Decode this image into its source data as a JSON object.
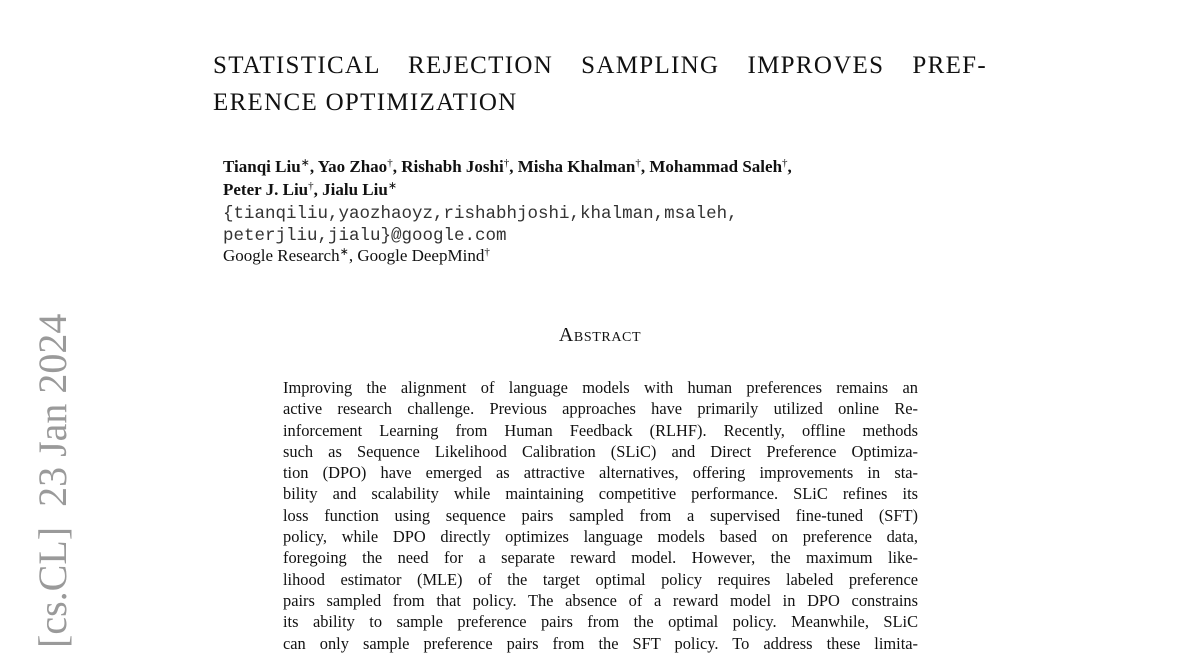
{
  "side_stamp": "[cs.CL]  23 Jan 2024",
  "title": {
    "lines": [
      "STATISTICAL REJECTION SAMPLING IMPROVES PREF-",
      "ERENCE OPTIMIZATION"
    ]
  },
  "authors": {
    "lines": [
      [
        {
          "name": "Tianqi Liu",
          "mark": "∗",
          "sep": ","
        },
        {
          "name": "Yao Zhao",
          "mark": "†",
          "sep": ","
        },
        {
          "name": "Rishabh Joshi",
          "mark": "†",
          "sep": ","
        },
        {
          "name": "Misha Khalman",
          "mark": "†",
          "sep": ","
        },
        {
          "name": "Mohammad Saleh",
          "mark": "†",
          "sep": ","
        }
      ],
      [
        {
          "name": "Peter J. Liu",
          "mark": "†",
          "sep": ","
        },
        {
          "name": "Jialu Liu",
          "mark": "∗"
        }
      ]
    ]
  },
  "emails": [
    "{tianqiliu,yaozhaoyz,rishabhjoshi,khalman,msaleh,",
    "peterjliu,jialu}@google.com"
  ],
  "affiliations": [
    {
      "name": "Google Research",
      "mark": "∗",
      "sep": ","
    },
    {
      "name": "Google DeepMind",
      "mark": "†"
    }
  ],
  "abstract": {
    "heading": "Abstract",
    "lines": [
      "Improving the alignment of language models with human preferences remains an",
      "active research challenge. Previous approaches have primarily utilized online Re-",
      "inforcement Learning from Human Feedback (RLHF). Recently, offline methods",
      "such as Sequence Likelihood Calibration (SLiC) and Direct Preference Optimiza-",
      "tion (DPO) have emerged as attractive alternatives, offering improvements in sta-",
      "bility and scalability while maintaining competitive performance. SLiC refines its",
      "loss function using sequence pairs sampled from a supervised fine-tuned (SFT)",
      "policy, while DPO directly optimizes language models based on preference data,",
      "foregoing the need for a separate reward model. However, the maximum like-",
      "lihood estimator (MLE) of the target optimal policy requires labeled preference",
      "pairs sampled from that policy. The absence of a reward model in DPO constrains",
      "its ability to sample preference pairs from the optimal policy. Meanwhile, SLiC",
      "can only sample preference pairs from the SFT policy. To address these limita-"
    ]
  }
}
